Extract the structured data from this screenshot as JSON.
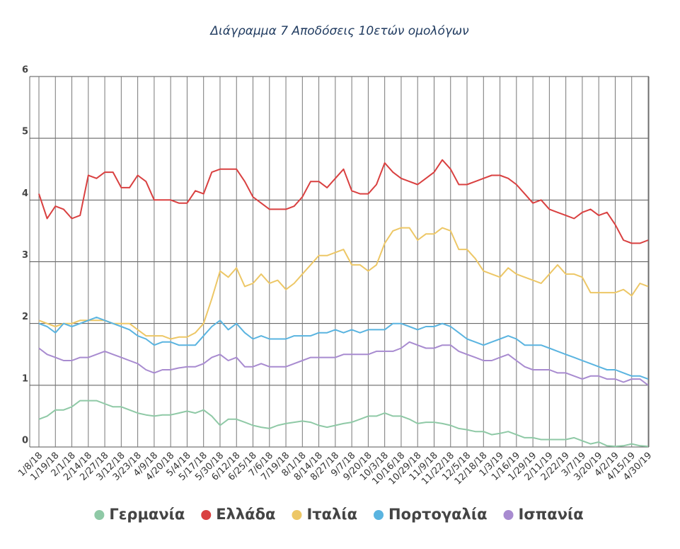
{
  "chart_data": {
    "type": "line",
    "title": "Διάγραμμα 7  Αποδόσεις 10ετών ομολόγων",
    "categories": [
      "1/8/18",
      null,
      "1/19/18",
      null,
      "2/1/18",
      null,
      "2/14/18",
      null,
      "2/27/18",
      null,
      "3/12/18",
      null,
      "3/23/18",
      null,
      "4/9/18",
      null,
      "4/20/18",
      null,
      "5/4/18",
      null,
      "5/17/18",
      null,
      "5/30/18",
      null,
      "6/12/18",
      null,
      "6/25/18",
      null,
      "7/6/18",
      null,
      "7/19/18",
      null,
      "8/1/18",
      null,
      "8/14/18",
      null,
      "8/27/18",
      null,
      "9/7/18",
      null,
      "9/20/18",
      null,
      "10/3/18",
      null,
      "10/16/18",
      null,
      "10/29/18",
      null,
      "11/9/18",
      null,
      "11/22/18",
      null,
      "12/5/18",
      null,
      "12/18/18",
      null,
      "1/3/19",
      null,
      "1/16/19",
      null,
      "1/29/19",
      null,
      "2/11/19",
      null,
      "2/22/19",
      null,
      "3/7/19",
      null,
      "3/20/19",
      null,
      "4/2/19",
      null,
      "4/15/19",
      null,
      "4/30/19"
    ],
    "ylim": [
      0,
      6
    ],
    "yticks": [
      0,
      1,
      2,
      3,
      4,
      5,
      6
    ],
    "grid": true,
    "legend": "bottom",
    "series": [
      {
        "name": "Γερμανία",
        "color": "#8fc9a6",
        "values": [
          0.45,
          0.5,
          0.6,
          0.6,
          0.65,
          0.75,
          0.75,
          0.75,
          0.7,
          0.65,
          0.65,
          0.6,
          0.55,
          0.52,
          0.5,
          0.52,
          0.52,
          0.55,
          0.58,
          0.55,
          0.6,
          0.5,
          0.35,
          0.45,
          0.45,
          0.4,
          0.35,
          0.32,
          0.3,
          0.35,
          0.38,
          0.4,
          0.42,
          0.4,
          0.35,
          0.32,
          0.35,
          0.38,
          0.4,
          0.45,
          0.5,
          0.5,
          0.55,
          0.5,
          0.5,
          0.45,
          0.38,
          0.4,
          0.4,
          0.38,
          0.35,
          0.3,
          0.28,
          0.25,
          0.25,
          0.2,
          0.22,
          0.25,
          0.2,
          0.15,
          0.15,
          0.12,
          0.12,
          0.12,
          0.12,
          0.15,
          0.1,
          0.05,
          0.08,
          0.02,
          0.01,
          0.02,
          0.05,
          0.02,
          0.01
        ]
      },
      {
        "name": "Ελλάδα",
        "color": "#d94040",
        "values": [
          4.1,
          3.7,
          3.9,
          3.85,
          3.7,
          3.75,
          4.4,
          4.35,
          4.45,
          4.45,
          4.2,
          4.2,
          4.4,
          4.3,
          4.0,
          4.0,
          4.0,
          3.95,
          3.95,
          4.15,
          4.1,
          4.45,
          4.5,
          4.5,
          4.5,
          4.3,
          4.05,
          3.95,
          3.85,
          3.85,
          3.85,
          3.9,
          4.05,
          4.3,
          4.3,
          4.2,
          4.35,
          4.5,
          4.15,
          4.1,
          4.1,
          4.25,
          4.6,
          4.45,
          4.35,
          4.3,
          4.25,
          4.35,
          4.45,
          4.65,
          4.5,
          4.25,
          4.25,
          4.3,
          4.35,
          4.4,
          4.4,
          4.35,
          4.25,
          4.1,
          3.95,
          4.0,
          3.85,
          3.8,
          3.75,
          3.7,
          3.8,
          3.85,
          3.75,
          3.8,
          3.6,
          3.35,
          3.3,
          3.3,
          3.35
        ]
      },
      {
        "name": "Ιταλία",
        "color": "#edc766",
        "values": [
          2.05,
          2.0,
          1.95,
          2.0,
          2.0,
          2.05,
          2.05,
          2.05,
          2.05,
          2.0,
          2.0,
          2.0,
          1.9,
          1.8,
          1.8,
          1.8,
          1.75,
          1.78,
          1.78,
          1.85,
          2.0,
          2.4,
          2.85,
          2.75,
          2.9,
          2.6,
          2.65,
          2.8,
          2.65,
          2.7,
          2.55,
          2.65,
          2.8,
          2.95,
          3.1,
          3.1,
          3.15,
          3.2,
          2.95,
          2.95,
          2.85,
          2.95,
          3.3,
          3.5,
          3.55,
          3.55,
          3.35,
          3.45,
          3.45,
          3.55,
          3.5,
          3.2,
          3.2,
          3.05,
          2.85,
          2.8,
          2.75,
          2.9,
          2.8,
          2.75,
          2.7,
          2.65,
          2.8,
          2.95,
          2.8,
          2.8,
          2.75,
          2.5,
          2.5,
          2.5,
          2.5,
          2.55,
          2.45,
          2.65,
          2.6
        ]
      },
      {
        "name": "Πορτογαλία",
        "color": "#5ab4e0",
        "values": [
          2.0,
          1.95,
          1.85,
          2.0,
          1.95,
          2.0,
          2.05,
          2.1,
          2.05,
          2.0,
          1.95,
          1.9,
          1.8,
          1.75,
          1.65,
          1.7,
          1.7,
          1.65,
          1.65,
          1.65,
          1.8,
          1.95,
          2.05,
          1.9,
          2.0,
          1.85,
          1.75,
          1.8,
          1.75,
          1.75,
          1.75,
          1.8,
          1.8,
          1.8,
          1.85,
          1.85,
          1.9,
          1.85,
          1.9,
          1.85,
          1.9,
          1.9,
          1.9,
          2.0,
          2.0,
          1.95,
          1.9,
          1.95,
          1.95,
          2.0,
          1.95,
          1.85,
          1.75,
          1.7,
          1.65,
          1.7,
          1.75,
          1.8,
          1.75,
          1.65,
          1.65,
          1.65,
          1.6,
          1.55,
          1.5,
          1.45,
          1.4,
          1.35,
          1.3,
          1.25,
          1.25,
          1.2,
          1.15,
          1.15,
          1.1
        ]
      },
      {
        "name": "Ισπανία",
        "color": "#a88bd0",
        "values": [
          1.6,
          1.5,
          1.45,
          1.4,
          1.4,
          1.45,
          1.45,
          1.5,
          1.55,
          1.5,
          1.45,
          1.4,
          1.35,
          1.25,
          1.2,
          1.25,
          1.25,
          1.28,
          1.3,
          1.3,
          1.35,
          1.45,
          1.5,
          1.4,
          1.45,
          1.3,
          1.3,
          1.35,
          1.3,
          1.3,
          1.3,
          1.35,
          1.4,
          1.45,
          1.45,
          1.45,
          1.45,
          1.5,
          1.5,
          1.5,
          1.5,
          1.55,
          1.55,
          1.55,
          1.6,
          1.7,
          1.65,
          1.6,
          1.6,
          1.65,
          1.65,
          1.55,
          1.5,
          1.45,
          1.4,
          1.4,
          1.45,
          1.5,
          1.4,
          1.3,
          1.25,
          1.25,
          1.25,
          1.2,
          1.2,
          1.15,
          1.1,
          1.15,
          1.15,
          1.1,
          1.1,
          1.05,
          1.1,
          1.1,
          1.0
        ]
      }
    ]
  }
}
